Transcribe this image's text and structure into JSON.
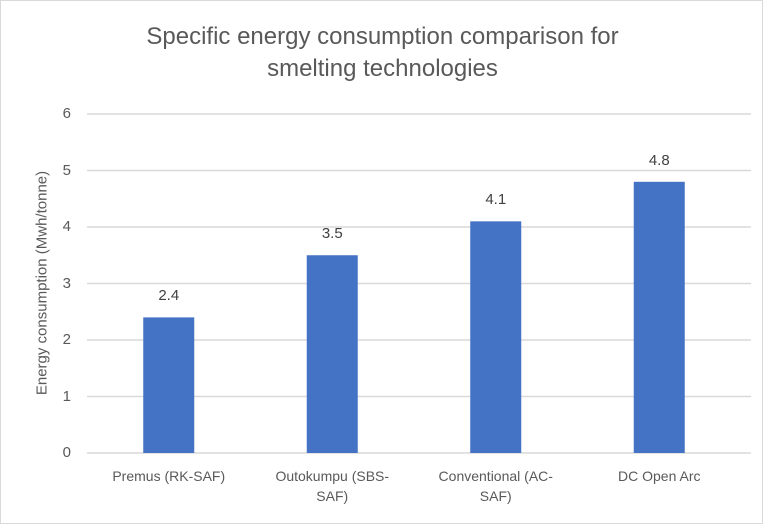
{
  "chart_data": {
    "type": "bar",
    "title_lines": [
      "Specific energy consumption comparison for",
      "smelting technologies"
    ],
    "xlabel": "",
    "ylabel": "Energy consumption (Mwh/tonne)",
    "categories": [
      "Premus (RK-SAF)",
      "Outokumpu (SBS-SAF)",
      "Conventional (AC-SAF)",
      "DC Open Arc"
    ],
    "values": [
      2.4,
      3.5,
      4.1,
      4.8
    ],
    "data_labels": [
      "2.4",
      "3.5",
      "4.1",
      "4.8"
    ],
    "ylim": [
      0,
      6
    ],
    "yticks": [
      "0",
      "1",
      "2",
      "3",
      "4",
      "5",
      "6"
    ],
    "grid": true,
    "legend": "none",
    "bar_color": "#4472C4",
    "grid_color": "#d9d9d9"
  }
}
